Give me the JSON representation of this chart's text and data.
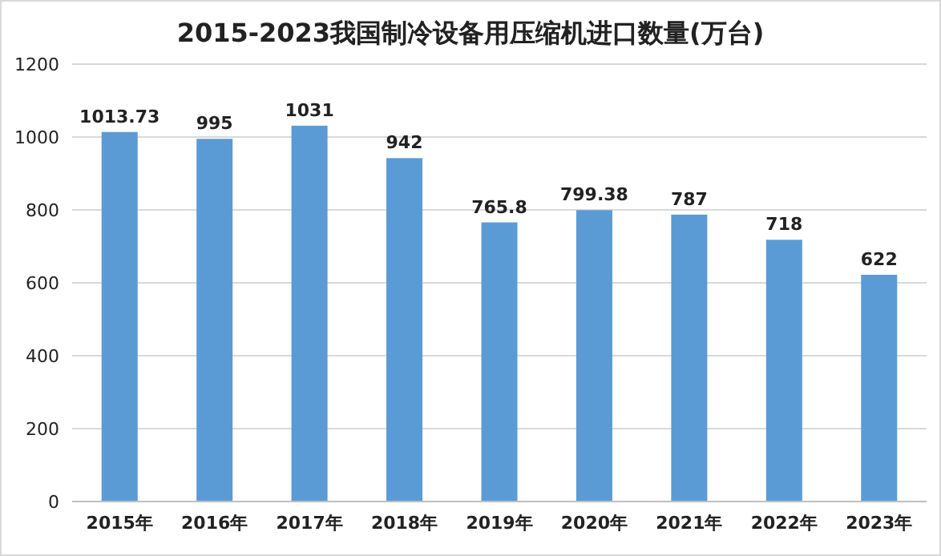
{
  "chart_data": {
    "type": "bar",
    "title": "2015-2023我国制冷设备用压缩机进口数量(万台)",
    "categories": [
      "2015年",
      "2016年",
      "2017年",
      "2018年",
      "2019年",
      "2020年",
      "2021年",
      "2022年",
      "2023年"
    ],
    "values": [
      1013.73,
      995,
      1031,
      942,
      765.8,
      799.38,
      787,
      718,
      622
    ],
    "color": "#5b9bd5",
    "ylim": [
      0,
      1200
    ],
    "yticks": [
      0,
      200,
      400,
      600,
      800,
      1000,
      1200
    ],
    "grid": "y",
    "data_labels": true
  }
}
